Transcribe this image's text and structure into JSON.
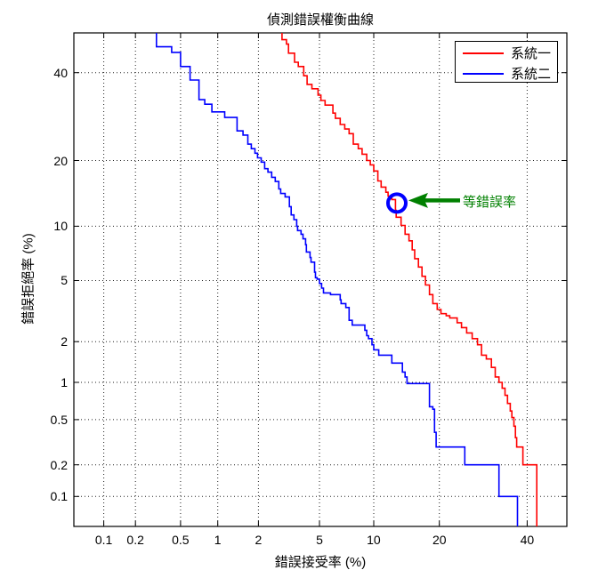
{
  "figure": {
    "background": "#ffffff",
    "axis_color": "#000000"
  },
  "legend": {
    "position": "top-right",
    "items": [
      {
        "label": "系統一",
        "color": "#ff0000"
      },
      {
        "label": "系統二",
        "color": "#0000ff"
      }
    ]
  },
  "annotation": {
    "label": "等錯誤率",
    "color": "#008000",
    "points_to": {
      "far_percent": 13,
      "frr_percent": 13
    }
  },
  "chart_data": {
    "type": "line",
    "subtype": "DET staircase curves",
    "title": "偵測錯誤權衡曲線",
    "xlabel": "錯誤接受率 (%)",
    "ylabel": "錯誤拒絕率 (%)",
    "scale": "normal-deviate (probit) on both axes, values in percent",
    "grid": "dotted",
    "legend_position": "top-right",
    "x_ticks_percent": [
      0.1,
      0.2,
      0.5,
      1,
      2,
      5,
      10,
      20,
      40
    ],
    "x_tick_labels": [
      "0.1",
      "0.2",
      "0.5",
      "1",
      "2",
      "5",
      "10",
      "20",
      "40"
    ],
    "y_ticks_percent": [
      0.1,
      0.2,
      0.5,
      1,
      2,
      5,
      10,
      20,
      40
    ],
    "y_tick_labels": [
      "0.1",
      "0.2",
      "0.5",
      "1",
      "2",
      "5",
      "10",
      "20",
      "40"
    ],
    "xlim_percent": [
      0.05,
      50.5
    ],
    "ylim_percent": [
      0.05,
      50.5
    ],
    "eer_marker": {
      "far_percent": 13,
      "frr_percent": 13,
      "color": "#0000ff",
      "shape": "circle-outline"
    },
    "series": [
      {
        "name": "系統一",
        "color": "#ff0000",
        "points_far_frr": [
          [
            2.9,
            50.5
          ],
          [
            3.1,
            48.7
          ],
          [
            3.2,
            47.5
          ],
          [
            3.5,
            45.1
          ],
          [
            3.7,
            42.7
          ],
          [
            4.0,
            41.6
          ],
          [
            4.2,
            39.2
          ],
          [
            4.5,
            37.0
          ],
          [
            4.9,
            35.9
          ],
          [
            5.1,
            34.3
          ],
          [
            5.4,
            33.0
          ],
          [
            6.0,
            31.9
          ],
          [
            6.2,
            30.0
          ],
          [
            6.6,
            28.8
          ],
          [
            7.0,
            27.4
          ],
          [
            7.4,
            26.4
          ],
          [
            7.8,
            25.4
          ],
          [
            8.3,
            23.2
          ],
          [
            8.7,
            22.3
          ],
          [
            9.2,
            21.2
          ],
          [
            9.6,
            20.0
          ],
          [
            10.0,
            19.2
          ],
          [
            10.5,
            18.1
          ],
          [
            10.9,
            16.4
          ],
          [
            11.5,
            15.4
          ],
          [
            11.8,
            14.6
          ],
          [
            12.3,
            14.0
          ],
          [
            12.8,
            13.5
          ],
          [
            12.9,
            12.0
          ],
          [
            13.6,
            11.1
          ],
          [
            14.2,
            10.1
          ],
          [
            14.8,
            9.1
          ],
          [
            15.3,
            8.4
          ],
          [
            15.7,
            7.5
          ],
          [
            16.3,
            6.7
          ],
          [
            16.9,
            6.0
          ],
          [
            17.5,
            5.3
          ],
          [
            18.2,
            4.7
          ],
          [
            18.8,
            4.1
          ],
          [
            19.6,
            3.6
          ],
          [
            20.3,
            3.3
          ],
          [
            21.3,
            3.1
          ],
          [
            22.0,
            3.0
          ],
          [
            23.5,
            2.9
          ],
          [
            24.4,
            2.7
          ],
          [
            25.5,
            2.5
          ],
          [
            26.7,
            2.3
          ],
          [
            27.9,
            2.1
          ],
          [
            28.8,
            1.9
          ],
          [
            29.9,
            1.6
          ],
          [
            31.1,
            1.5
          ],
          [
            32.0,
            1.3
          ],
          [
            32.9,
            1.1
          ],
          [
            33.7,
            1.0
          ],
          [
            34.4,
            0.9
          ],
          [
            35.0,
            0.79
          ],
          [
            35.7,
            0.68
          ],
          [
            36.1,
            0.59
          ],
          [
            36.6,
            0.52
          ],
          [
            37.0,
            0.44
          ],
          [
            37.3,
            0.35
          ],
          [
            37.3,
            0.31
          ],
          [
            38.9,
            0.29
          ],
          [
            38.9,
            0.2
          ],
          [
            42.5,
            0.2
          ],
          [
            42.5,
            0.05
          ]
        ]
      },
      {
        "name": "系統二",
        "color": "#0000ff",
        "points_far_frr": [
          [
            0.31,
            50.5
          ],
          [
            0.31,
            46.8
          ],
          [
            0.42,
            46.8
          ],
          [
            0.42,
            45.3
          ],
          [
            0.5,
            45.3
          ],
          [
            0.5,
            41.6
          ],
          [
            0.6,
            41.6
          ],
          [
            0.6,
            38.1
          ],
          [
            0.71,
            38.1
          ],
          [
            0.71,
            33.2
          ],
          [
            0.79,
            33.2
          ],
          [
            0.79,
            32.1
          ],
          [
            0.9,
            32.1
          ],
          [
            0.9,
            30.4
          ],
          [
            1.13,
            30.3
          ],
          [
            1.28,
            29.0
          ],
          [
            1.4,
            29.0
          ],
          [
            1.4,
            26.0
          ],
          [
            1.55,
            26.0
          ],
          [
            1.55,
            25.1
          ],
          [
            1.68,
            25.1
          ],
          [
            1.68,
            23.9
          ],
          [
            1.78,
            23.2
          ],
          [
            1.89,
            22.3
          ],
          [
            1.97,
            21.4
          ],
          [
            2.09,
            20.5
          ],
          [
            2.21,
            19.7
          ],
          [
            2.33,
            18.5
          ],
          [
            2.47,
            17.9
          ],
          [
            2.61,
            17.0
          ],
          [
            2.76,
            16.3
          ],
          [
            2.84,
            15.1
          ],
          [
            3.04,
            14.4
          ],
          [
            3.24,
            13.9
          ],
          [
            3.33,
            12.5
          ],
          [
            3.47,
            11.4
          ],
          [
            3.61,
            10.8
          ],
          [
            3.66,
            10.0
          ],
          [
            3.85,
            9.5
          ],
          [
            3.96,
            9.1
          ],
          [
            4.11,
            8.6
          ],
          [
            4.16,
            8.0
          ],
          [
            4.38,
            7.3
          ],
          [
            4.44,
            6.8
          ],
          [
            4.67,
            6.4
          ],
          [
            4.73,
            5.6
          ],
          [
            4.84,
            5.2
          ],
          [
            5.0,
            5.1
          ],
          [
            5.15,
            4.8
          ],
          [
            5.28,
            4.5
          ],
          [
            5.47,
            4.2
          ],
          [
            5.81,
            4.2
          ],
          [
            6.6,
            4.1
          ],
          [
            6.68,
            3.8
          ],
          [
            7.1,
            3.6
          ],
          [
            7.4,
            3.4
          ],
          [
            7.4,
            3.0
          ],
          [
            7.7,
            2.8
          ],
          [
            7.8,
            2.6
          ],
          [
            9.0,
            2.6
          ],
          [
            9.2,
            2.4
          ],
          [
            9.4,
            2.2
          ],
          [
            9.8,
            2.1
          ],
          [
            10.0,
            1.9
          ],
          [
            10.6,
            1.75
          ],
          [
            11.1,
            1.6
          ],
          [
            12.3,
            1.6
          ],
          [
            12.6,
            1.4
          ],
          [
            13.8,
            1.4
          ],
          [
            14.2,
            1.2
          ],
          [
            14.5,
            1.1
          ],
          [
            14.5,
            0.98
          ],
          [
            18.2,
            0.98
          ],
          [
            18.2,
            0.7
          ],
          [
            18.8,
            0.64
          ],
          [
            19.1,
            0.61
          ],
          [
            19.1,
            0.5
          ],
          [
            19.4,
            0.39
          ],
          [
            19.4,
            0.29
          ],
          [
            21.1,
            0.29
          ],
          [
            25.1,
            0.29
          ],
          [
            25.1,
            0.2
          ],
          [
            32.9,
            0.2
          ],
          [
            32.9,
            0.1
          ],
          [
            37.5,
            0.1
          ],
          [
            37.5,
            0.05
          ]
        ]
      }
    ]
  }
}
